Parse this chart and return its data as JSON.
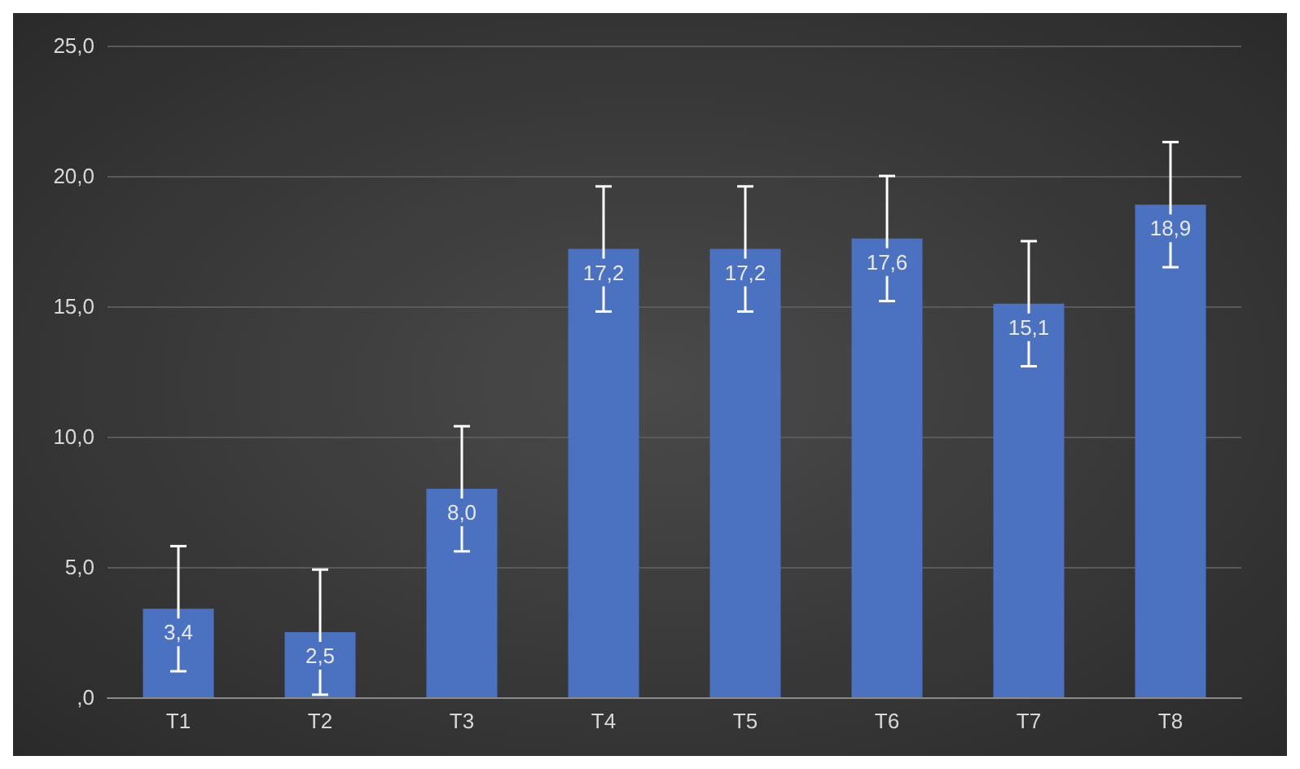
{
  "chart_data": {
    "type": "bar",
    "categories": [
      "T1",
      "T2",
      "T3",
      "T4",
      "T5",
      "T6",
      "T7",
      "T8"
    ],
    "values": [
      3.4,
      2.5,
      8.0,
      17.2,
      17.2,
      17.6,
      15.1,
      18.9
    ],
    "errors": [
      2.4,
      2.4,
      2.4,
      2.4,
      2.4,
      2.4,
      2.4,
      2.4
    ],
    "value_labels": [
      "3,4",
      "2,5",
      "8,0",
      "17,2",
      "17,2",
      "17,6",
      "15,1",
      "18,9"
    ],
    "color": "#4a72c0",
    "ylim": [
      0,
      25
    ],
    "yticks": [
      {
        "value": 0,
        "label": ",0"
      },
      {
        "value": 5,
        "label": "5,0"
      },
      {
        "value": 10,
        "label": "10,0"
      },
      {
        "value": 15,
        "label": "15,0"
      },
      {
        "value": 20,
        "label": "20,0"
      },
      {
        "value": 25,
        "label": "25,0"
      }
    ],
    "grid": "y"
  }
}
